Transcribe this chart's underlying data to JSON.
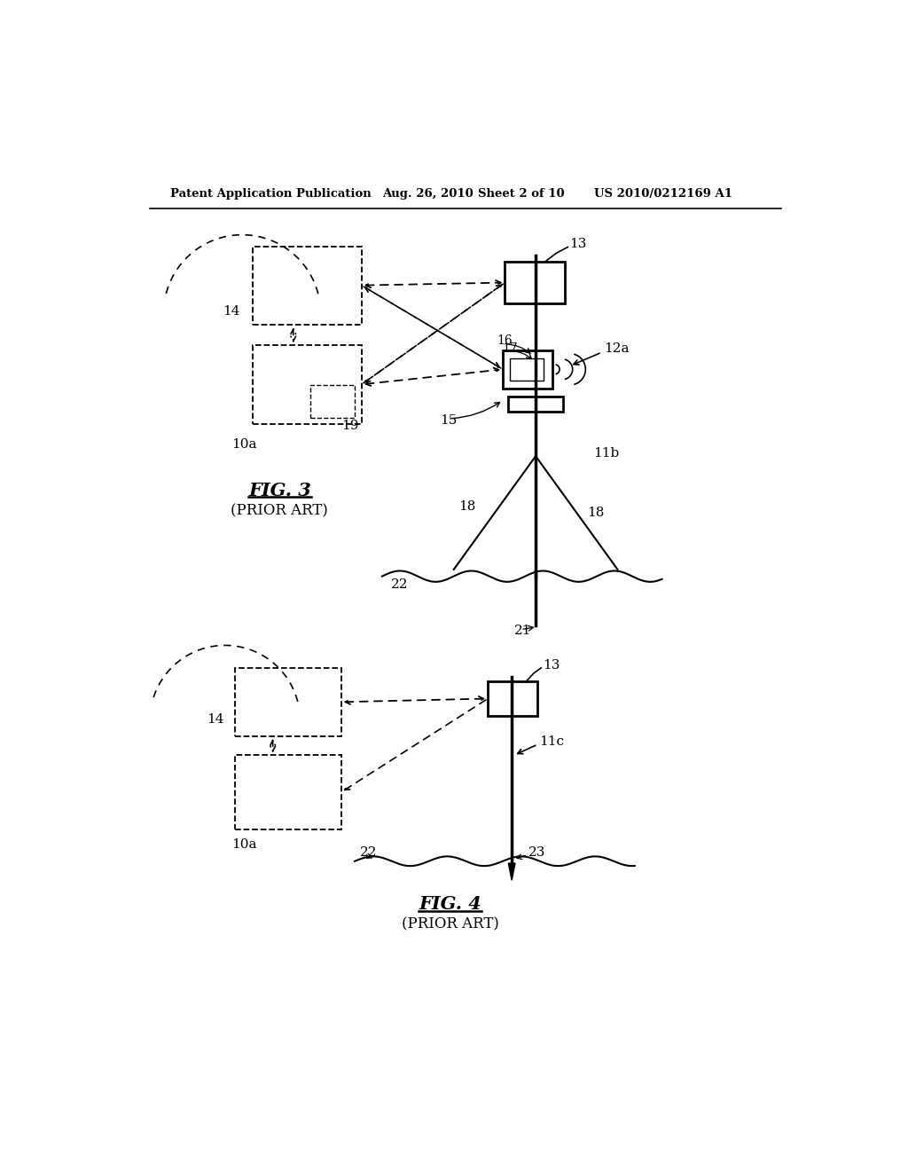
{
  "bg_color": "#ffffff",
  "header_text": "Patent Application Publication",
  "header_date": "Aug. 26, 2010",
  "header_sheet": "Sheet 2 of 10",
  "header_patent": "US 2010/0212169 A1",
  "fig3_title": "FIG. 3",
  "fig3_subtitle": "(PRIOR ART)",
  "fig4_title": "FIG. 4",
  "fig4_subtitle": "(PRIOR ART)",
  "line_color": "#000000"
}
